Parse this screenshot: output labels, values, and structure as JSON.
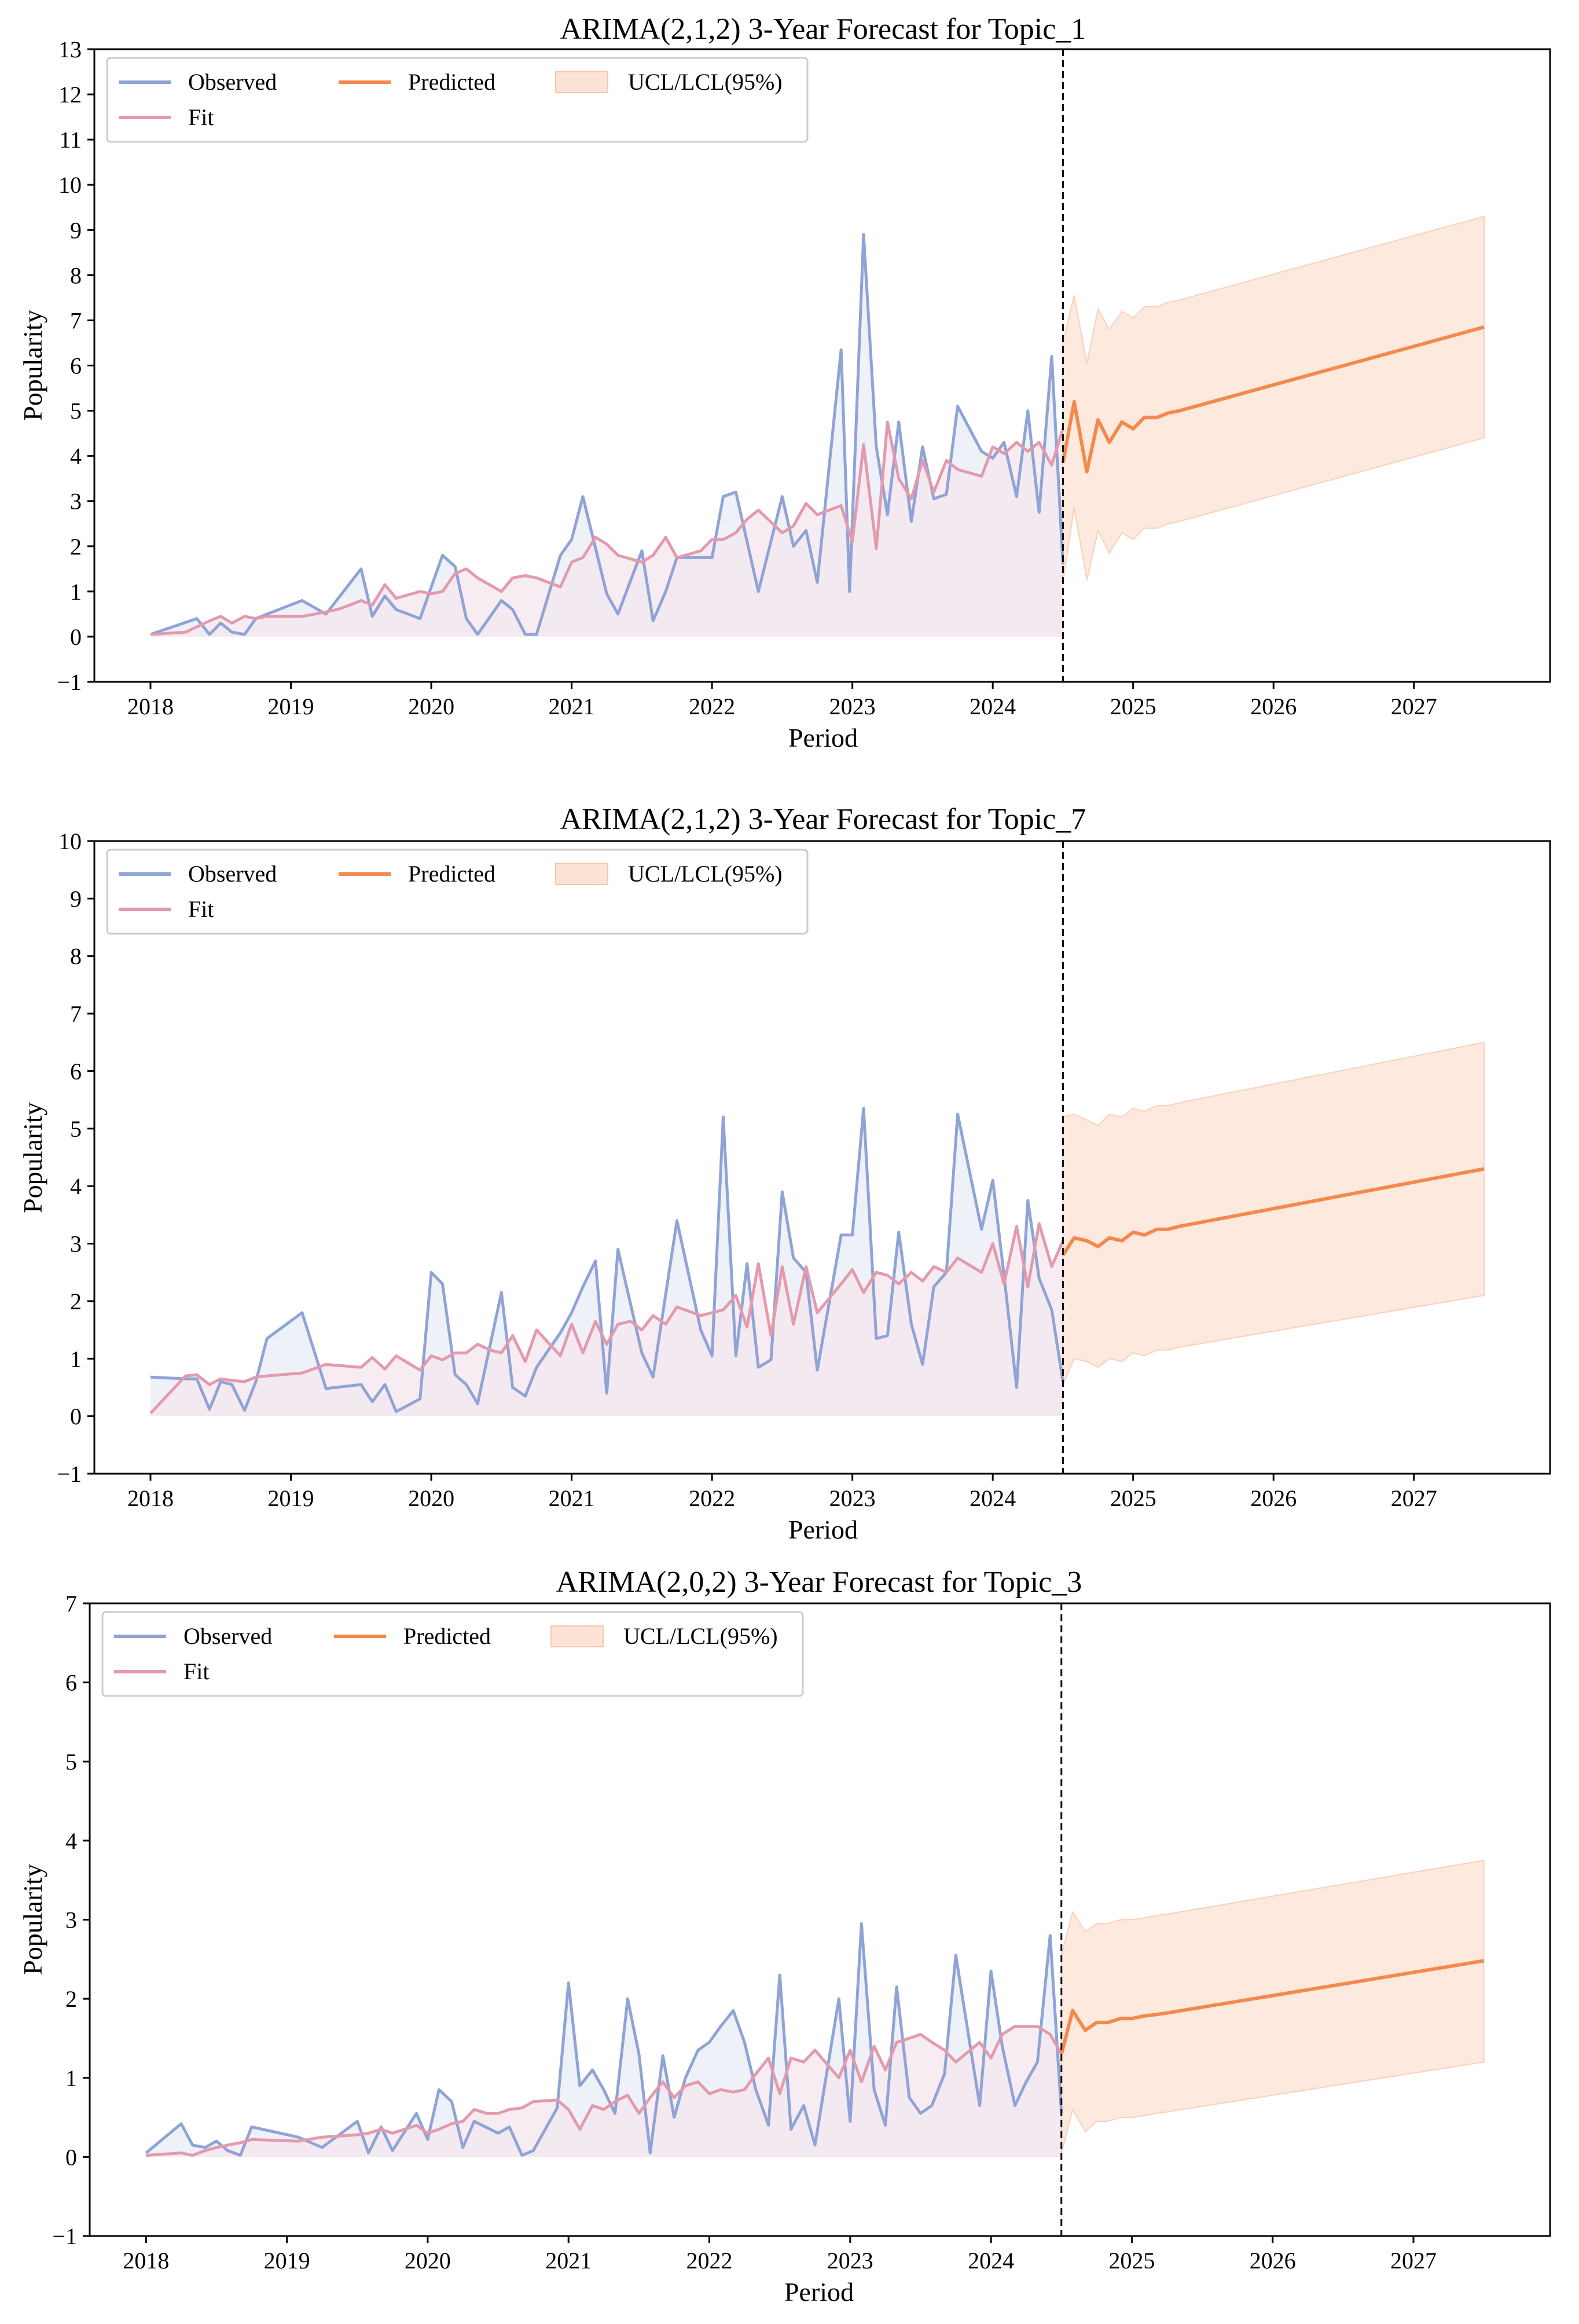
{
  "colors": {
    "observed": "#8fa3d6",
    "fit": "#e39aad",
    "predicted": "#f5884c",
    "band": "#fde3d5",
    "observed_fill": "#e9ecf6",
    "fit_fill": "#f4e6ee"
  },
  "chart_data": [
    {
      "type": "line",
      "title": "ARIMA(2,1,2) 3-Year Forecast for Topic_1",
      "xlabel": "Period",
      "ylabel": "Popularity",
      "xlim": [
        2017.6,
        2027.97
      ],
      "ylim": [
        -1,
        13
      ],
      "x_ticks": [
        "2018",
        "2019",
        "2020",
        "2021",
        "2022",
        "2023",
        "2024",
        "2025",
        "2026",
        "2027"
      ],
      "y_ticks": [
        "−1",
        "0",
        "1",
        "2",
        "3",
        "4",
        "5",
        "6",
        "7",
        "8",
        "9",
        "10",
        "11",
        "12",
        "13"
      ],
      "forecast_start": 2024.5,
      "legend": [
        "Observed",
        "Predicted",
        "UCL/LCL(95%)",
        "Fit"
      ],
      "observed": {
        "x": [
          2018.0,
          2018.33,
          2018.42,
          2018.5,
          2018.58,
          2018.67,
          2018.75,
          2018.83,
          2019.08,
          2019.25,
          2019.5,
          2019.58,
          2019.67,
          2019.75,
          2019.92,
          2020.08,
          2020.17,
          2020.25,
          2020.33,
          2020.5,
          2020.58,
          2020.67,
          2020.75,
          2020.92,
          2021.0,
          2021.08,
          2021.25,
          2021.33,
          2021.5,
          2021.58,
          2021.67,
          2021.75,
          2022.0,
          2022.08,
          2022.17,
          2022.33,
          2022.5,
          2022.58,
          2022.67,
          2022.75,
          2022.92,
          2022.98,
          2023.08,
          2023.17,
          2023.25,
          2023.33,
          2023.42,
          2023.5,
          2023.58,
          2023.67,
          2023.75,
          2023.92,
          2024.0,
          2024.08,
          2024.17,
          2024.25,
          2024.33,
          2024.42,
          2024.5
        ],
        "y": [
          0.05,
          0.4,
          0.05,
          0.3,
          0.1,
          0.05,
          0.4,
          0.5,
          0.8,
          0.5,
          1.5,
          0.45,
          0.9,
          0.6,
          0.4,
          1.8,
          1.55,
          0.4,
          0.05,
          0.8,
          0.6,
          0.05,
          0.05,
          1.8,
          2.15,
          3.1,
          0.95,
          0.5,
          1.9,
          0.35,
          1.0,
          1.75,
          1.75,
          3.1,
          3.2,
          1.0,
          3.1,
          2.0,
          2.35,
          1.2,
          6.35,
          1.0,
          8.9,
          4.2,
          2.7,
          4.75,
          2.55,
          4.2,
          3.05,
          3.15,
          5.1,
          4.1,
          3.95,
          4.3,
          3.1,
          5.0,
          2.75,
          6.2,
          1.6
        ]
      },
      "fit": {
        "x": [
          2018.0,
          2018.25,
          2018.42,
          2018.5,
          2018.58,
          2018.67,
          2018.75,
          2018.83,
          2019.0,
          2019.08,
          2019.17,
          2019.33,
          2019.42,
          2019.5,
          2019.58,
          2019.67,
          2019.75,
          2019.92,
          2020.0,
          2020.08,
          2020.17,
          2020.25,
          2020.33,
          2020.5,
          2020.58,
          2020.67,
          2020.75,
          2020.92,
          2021.0,
          2021.08,
          2021.17,
          2021.25,
          2021.33,
          2021.5,
          2021.58,
          2021.67,
          2021.75,
          2021.92,
          2022.0,
          2022.08,
          2022.17,
          2022.25,
          2022.33,
          2022.5,
          2022.58,
          2022.67,
          2022.75,
          2022.92,
          2023.0,
          2023.08,
          2023.17,
          2023.25,
          2023.33,
          2023.42,
          2023.5,
          2023.58,
          2023.67,
          2023.75,
          2023.92,
          2024.0,
          2024.08,
          2024.17,
          2024.25,
          2024.33,
          2024.42,
          2024.5
        ],
        "y": [
          0.05,
          0.1,
          0.35,
          0.45,
          0.3,
          0.45,
          0.4,
          0.45,
          0.45,
          0.45,
          0.5,
          0.6,
          0.7,
          0.8,
          0.7,
          1.15,
          0.85,
          1.0,
          0.95,
          1.0,
          1.4,
          1.5,
          1.3,
          1.0,
          1.3,
          1.35,
          1.3,
          1.1,
          1.65,
          1.75,
          2.2,
          2.05,
          1.8,
          1.65,
          1.8,
          2.2,
          1.75,
          1.9,
          2.15,
          2.15,
          2.3,
          2.6,
          2.8,
          2.3,
          2.45,
          2.95,
          2.7,
          2.9,
          2.1,
          4.25,
          1.95,
          4.75,
          3.5,
          3.05,
          3.9,
          3.2,
          3.9,
          3.7,
          3.55,
          4.2,
          4.05,
          4.3,
          4.1,
          4.3,
          3.8,
          4.6
        ]
      },
      "predicted": {
        "x": [
          2024.5,
          2024.58,
          2024.67,
          2024.75,
          2024.83,
          2024.92,
          2025.0,
          2025.08,
          2025.17,
          2025.25,
          2025.33,
          2027.5
        ],
        "y": [
          3.85,
          5.2,
          3.65,
          4.8,
          4.3,
          4.75,
          4.6,
          4.85,
          4.85,
          4.95,
          5.0,
          6.85
        ],
        "ucl": [
          6.5,
          7.55,
          6.05,
          7.25,
          6.8,
          7.2,
          7.05,
          7.3,
          7.3,
          7.4,
          7.45,
          9.3
        ],
        "lcl": [
          1.2,
          2.85,
          1.25,
          2.35,
          1.85,
          2.3,
          2.15,
          2.4,
          2.4,
          2.5,
          2.55,
          4.4
        ]
      }
    },
    {
      "type": "line",
      "title": "ARIMA(2,1,2) 3-Year Forecast for Topic_7",
      "xlabel": "Period",
      "ylabel": "Popularity",
      "xlim": [
        2017.6,
        2027.97
      ],
      "ylim": [
        -1,
        10
      ],
      "x_ticks": [
        "2018",
        "2019",
        "2020",
        "2021",
        "2022",
        "2023",
        "2024",
        "2025",
        "2026",
        "2027"
      ],
      "y_ticks": [
        "−1",
        "0",
        "1",
        "2",
        "3",
        "4",
        "5",
        "6",
        "7",
        "8",
        "9",
        "10"
      ],
      "forecast_start": 2024.5,
      "legend": [
        "Observed",
        "Predicted",
        "UCL/LCL(95%)",
        "Fit"
      ],
      "observed": {
        "x": [
          2018.0,
          2018.25,
          2018.33,
          2018.42,
          2018.5,
          2018.58,
          2018.67,
          2018.75,
          2018.83,
          2019.08,
          2019.25,
          2019.5,
          2019.58,
          2019.67,
          2019.75,
          2019.92,
          2020.0,
          2020.08,
          2020.17,
          2020.25,
          2020.33,
          2020.5,
          2020.58,
          2020.67,
          2020.75,
          2020.92,
          2021.0,
          2021.08,
          2021.17,
          2021.25,
          2021.33,
          2021.5,
          2021.58,
          2021.75,
          2021.92,
          2022.0,
          2022.08,
          2022.17,
          2022.25,
          2022.33,
          2022.42,
          2022.5,
          2022.58,
          2022.67,
          2022.75,
          2022.92,
          2023.0,
          2023.08,
          2023.17,
          2023.25,
          2023.33,
          2023.42,
          2023.5,
          2023.58,
          2023.67,
          2023.75,
          2023.92,
          2024.0,
          2024.08,
          2024.17,
          2024.25,
          2024.33,
          2024.42,
          2024.5
        ],
        "y": [
          0.68,
          0.65,
          0.65,
          0.12,
          0.6,
          0.55,
          0.1,
          0.6,
          1.35,
          1.8,
          0.48,
          0.55,
          0.25,
          0.55,
          0.08,
          0.3,
          2.5,
          2.3,
          0.72,
          0.55,
          0.22,
          2.15,
          0.5,
          0.35,
          0.85,
          1.45,
          1.8,
          2.25,
          2.7,
          0.4,
          2.9,
          1.1,
          0.68,
          3.4,
          1.5,
          1.05,
          5.2,
          1.05,
          2.65,
          0.85,
          0.98,
          3.9,
          2.75,
          2.5,
          0.8,
          3.15,
          3.15,
          5.35,
          1.35,
          1.4,
          3.2,
          1.6,
          0.9,
          2.25,
          2.5,
          5.25,
          3.25,
          4.1,
          2.45,
          0.5,
          3.75,
          2.4,
          1.85,
          0.6
        ]
      },
      "fit": {
        "x": [
          2018.0,
          2018.25,
          2018.33,
          2018.42,
          2018.5,
          2018.58,
          2018.67,
          2018.75,
          2018.83,
          2019.08,
          2019.25,
          2019.5,
          2019.58,
          2019.67,
          2019.75,
          2019.92,
          2020.0,
          2020.08,
          2020.17,
          2020.25,
          2020.33,
          2020.42,
          2020.5,
          2020.58,
          2020.67,
          2020.75,
          2020.92,
          2021.0,
          2021.08,
          2021.17,
          2021.25,
          2021.33,
          2021.42,
          2021.5,
          2021.58,
          2021.67,
          2021.75,
          2021.92,
          2022.0,
          2022.08,
          2022.17,
          2022.25,
          2022.33,
          2022.42,
          2022.5,
          2022.58,
          2022.67,
          2022.75,
          2022.92,
          2023.0,
          2023.08,
          2023.17,
          2023.25,
          2023.33,
          2023.42,
          2023.5,
          2023.58,
          2023.67,
          2023.75,
          2023.92,
          2024.0,
          2024.08,
          2024.17,
          2024.25,
          2024.33,
          2024.42,
          2024.5
        ],
        "y": [
          0.05,
          0.7,
          0.72,
          0.55,
          0.65,
          0.62,
          0.6,
          0.68,
          0.7,
          0.75,
          0.9,
          0.85,
          1.02,
          0.82,
          1.05,
          0.8,
          1.05,
          0.98,
          1.1,
          1.1,
          1.25,
          1.15,
          1.1,
          1.4,
          0.95,
          1.5,
          1.05,
          1.6,
          1.1,
          1.65,
          1.25,
          1.6,
          1.65,
          1.5,
          1.75,
          1.6,
          1.9,
          1.75,
          1.8,
          1.85,
          2.1,
          1.55,
          2.65,
          1.4,
          2.6,
          1.6,
          2.6,
          1.8,
          2.3,
          2.55,
          2.15,
          2.5,
          2.45,
          2.3,
          2.5,
          2.35,
          2.6,
          2.5,
          2.75,
          2.5,
          3.0,
          2.3,
          3.3,
          2.25,
          3.35,
          2.6,
          3.05
        ]
      },
      "predicted": {
        "x": [
          2024.5,
          2024.58,
          2024.67,
          2024.75,
          2024.83,
          2024.92,
          2025.0,
          2025.08,
          2025.17,
          2025.25,
          2025.33,
          2027.5
        ],
        "y": [
          2.8,
          3.1,
          3.05,
          2.95,
          3.1,
          3.05,
          3.2,
          3.15,
          3.25,
          3.25,
          3.3,
          4.3
        ],
        "ucl": [
          5.2,
          5.25,
          5.15,
          5.05,
          5.25,
          5.2,
          5.35,
          5.3,
          5.4,
          5.4,
          5.45,
          6.5
        ],
        "lcl": [
          0.55,
          1.0,
          0.95,
          0.85,
          1.0,
          0.95,
          1.1,
          1.05,
          1.15,
          1.15,
          1.2,
          2.1
        ]
      }
    },
    {
      "type": "line",
      "title": "ARIMA(2,0,2) 3-Year Forecast for Topic_3",
      "xlabel": "Period",
      "ylabel": "Popularity",
      "xlim": [
        2017.6,
        2027.97
      ],
      "ylim": [
        -1,
        7
      ],
      "x_ticks": [
        "2018",
        "2019",
        "2020",
        "2021",
        "2022",
        "2023",
        "2024",
        "2025",
        "2026",
        "2027"
      ],
      "y_ticks": [
        "−1",
        "0",
        "1",
        "2",
        "3",
        "4",
        "5",
        "6",
        "7"
      ],
      "forecast_start": 2024.5,
      "legend": [
        "Observed",
        "Predicted",
        "UCL/LCL(95%)",
        "Fit"
      ],
      "observed": {
        "x": [
          2018.0,
          2018.25,
          2018.33,
          2018.42,
          2018.5,
          2018.58,
          2018.67,
          2018.75,
          2019.08,
          2019.25,
          2019.5,
          2019.58,
          2019.67,
          2019.75,
          2019.92,
          2020.0,
          2020.08,
          2020.17,
          2020.25,
          2020.33,
          2020.5,
          2020.58,
          2020.67,
          2020.75,
          2020.92,
          2021.0,
          2021.08,
          2021.17,
          2021.25,
          2021.33,
          2021.42,
          2021.5,
          2021.58,
          2021.67,
          2021.75,
          2021.83,
          2021.92,
          2022.0,
          2022.08,
          2022.17,
          2022.25,
          2022.33,
          2022.42,
          2022.5,
          2022.58,
          2022.67,
          2022.75,
          2022.92,
          2023.0,
          2023.08,
          2023.17,
          2023.25,
          2023.33,
          2023.42,
          2023.5,
          2023.58,
          2023.67,
          2023.75,
          2023.92,
          2024.0,
          2024.08,
          2024.17,
          2024.25,
          2024.33,
          2024.42,
          2024.5
        ],
        "y": [
          0.05,
          0.42,
          0.15,
          0.12,
          0.2,
          0.08,
          0.02,
          0.38,
          0.25,
          0.12,
          0.45,
          0.05,
          0.38,
          0.08,
          0.55,
          0.22,
          0.85,
          0.7,
          0.12,
          0.45,
          0.3,
          0.38,
          0.02,
          0.08,
          0.62,
          2.2,
          0.9,
          1.1,
          0.85,
          0.55,
          2.0,
          1.3,
          0.05,
          1.28,
          0.5,
          1.0,
          1.35,
          1.45,
          1.65,
          1.85,
          1.45,
          0.85,
          0.4,
          2.3,
          0.35,
          0.65,
          0.15,
          2.0,
          0.45,
          2.95,
          0.85,
          0.4,
          2.15,
          0.75,
          0.55,
          0.65,
          1.05,
          2.55,
          0.65,
          2.35,
          1.4,
          0.65,
          0.95,
          1.2,
          2.8,
          0.55
        ]
      },
      "fit": {
        "x": [
          2018.0,
          2018.25,
          2018.33,
          2018.42,
          2018.5,
          2018.58,
          2018.67,
          2018.75,
          2019.08,
          2019.25,
          2019.5,
          2019.58,
          2019.67,
          2019.75,
          2019.92,
          2020.0,
          2020.08,
          2020.17,
          2020.25,
          2020.33,
          2020.42,
          2020.5,
          2020.58,
          2020.67,
          2020.75,
          2020.92,
          2021.0,
          2021.08,
          2021.17,
          2021.25,
          2021.33,
          2021.42,
          2021.5,
          2021.58,
          2021.67,
          2021.75,
          2021.83,
          2021.92,
          2022.0,
          2022.08,
          2022.17,
          2022.25,
          2022.33,
          2022.42,
          2022.5,
          2022.58,
          2022.67,
          2022.75,
          2022.92,
          2023.0,
          2023.08,
          2023.17,
          2023.25,
          2023.33,
          2023.42,
          2023.5,
          2023.58,
          2023.67,
          2023.75,
          2023.92,
          2024.0,
          2024.08,
          2024.17,
          2024.25,
          2024.33,
          2024.42,
          2024.5
        ],
        "y": [
          0.02,
          0.05,
          0.02,
          0.08,
          0.12,
          0.15,
          0.18,
          0.22,
          0.2,
          0.25,
          0.28,
          0.3,
          0.35,
          0.3,
          0.4,
          0.3,
          0.35,
          0.42,
          0.45,
          0.6,
          0.55,
          0.55,
          0.6,
          0.62,
          0.7,
          0.72,
          0.6,
          0.35,
          0.65,
          0.6,
          0.7,
          0.78,
          0.55,
          0.75,
          0.95,
          0.75,
          0.9,
          0.95,
          0.8,
          0.85,
          0.82,
          0.85,
          1.05,
          1.25,
          0.8,
          1.25,
          1.2,
          1.35,
          1.0,
          1.35,
          0.95,
          1.4,
          1.1,
          1.45,
          1.5,
          1.55,
          1.45,
          1.35,
          1.2,
          1.45,
          1.25,
          1.55,
          1.65,
          1.65,
          1.65,
          1.55,
          1.3
        ]
      },
      "predicted": {
        "x": [
          2024.5,
          2024.58,
          2024.67,
          2024.75,
          2024.83,
          2024.92,
          2025.0,
          2025.08,
          2025.17,
          2025.25,
          2027.5
        ],
        "y": [
          1.3,
          1.85,
          1.6,
          1.7,
          1.7,
          1.75,
          1.75,
          1.78,
          1.8,
          1.82,
          2.48
        ],
        "ucl": [
          2.55,
          3.1,
          2.85,
          2.95,
          2.95,
          3.0,
          3.0,
          3.02,
          3.05,
          3.07,
          3.75
        ],
        "lcl": [
          0.05,
          0.6,
          0.32,
          0.45,
          0.45,
          0.5,
          0.5,
          0.52,
          0.55,
          0.57,
          1.2
        ]
      }
    }
  ]
}
